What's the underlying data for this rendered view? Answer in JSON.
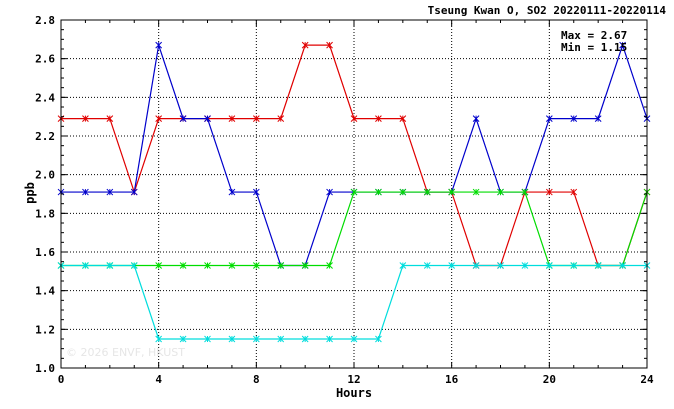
{
  "chart_data": {
    "type": "line",
    "title": "Tseung Kwan O, SO2 20220111-20220114",
    "xlabel": "Hours",
    "ylabel": "ppb",
    "xlim": [
      0,
      24
    ],
    "ylim": [
      1.0,
      2.8
    ],
    "xticks": [
      0,
      4,
      8,
      12,
      16,
      20,
      24
    ],
    "xtick_labels": [
      "0",
      "4",
      "8",
      "12",
      "16",
      "20",
      "24"
    ],
    "yticks": [
      1.0,
      1.2,
      1.4,
      1.6,
      1.8,
      2.0,
      2.2,
      2.4,
      2.6,
      2.8
    ],
    "ytick_labels": [
      "1.0",
      "1.2",
      "1.4",
      "1.6",
      "1.8",
      "2.0",
      "2.2",
      "2.4",
      "2.6",
      "2.8"
    ],
    "grid": true,
    "max_label": "Max = 2.67",
    "min_label": "Min = 1.15",
    "watermark": "© 2026  ENVF, HKUST",
    "x": [
      0,
      1,
      2,
      3,
      4,
      5,
      6,
      7,
      8,
      9,
      10,
      11,
      12,
      13,
      14,
      15,
      16,
      17,
      18,
      19,
      20,
      21,
      22,
      23,
      24
    ],
    "series": [
      {
        "color": "#e00000",
        "values": [
          2.29,
          2.29,
          2.29,
          1.91,
          2.29,
          2.29,
          2.29,
          2.29,
          2.29,
          2.29,
          2.67,
          2.67,
          2.29,
          2.29,
          2.29,
          1.91,
          1.91,
          1.53,
          1.53,
          1.91,
          1.91,
          1.91,
          1.53,
          1.53,
          1.91
        ]
      },
      {
        "color": "#0000cc",
        "values": [
          1.91,
          1.91,
          1.91,
          1.91,
          2.67,
          2.29,
          2.29,
          1.91,
          1.91,
          1.53,
          1.53,
          1.91,
          1.91,
          1.91,
          1.91,
          1.91,
          1.91,
          2.29,
          1.91,
          1.91,
          2.29,
          2.29,
          2.29,
          2.67,
          2.29
        ]
      },
      {
        "color": "#00dd00",
        "values": [
          1.53,
          1.53,
          1.53,
          1.53,
          1.53,
          1.53,
          1.53,
          1.53,
          1.53,
          1.53,
          1.53,
          1.53,
          1.91,
          1.91,
          1.91,
          1.91,
          1.91,
          1.91,
          1.91,
          1.91,
          1.53,
          1.53,
          1.53,
          1.53,
          1.91
        ]
      },
      {
        "color": "#00dddd",
        "values": [
          1.53,
          1.53,
          1.53,
          1.53,
          1.15,
          1.15,
          1.15,
          1.15,
          1.15,
          1.15,
          1.15,
          1.15,
          1.15,
          1.15,
          1.53,
          1.53,
          1.53,
          1.53,
          1.53,
          1.53,
          1.53,
          1.53,
          1.53,
          1.53,
          1.53
        ]
      }
    ]
  }
}
